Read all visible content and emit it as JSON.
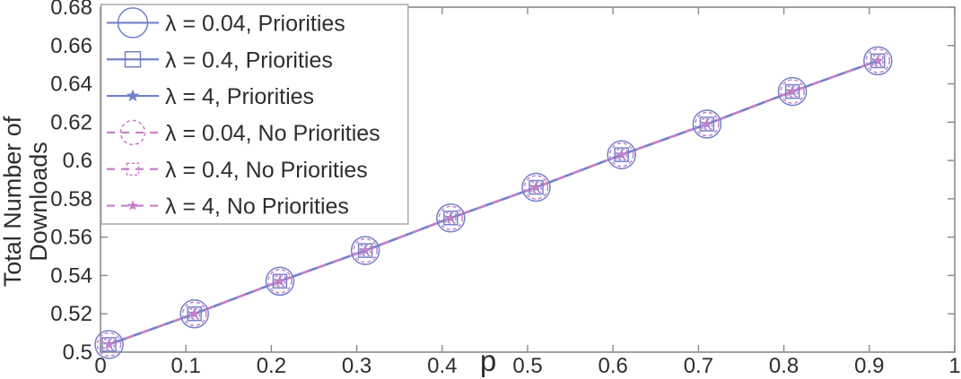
{
  "figure": {
    "colors": {
      "priorities": "#7280c9",
      "no_priorities": "#c77fc7",
      "axis": "#8a8a8a",
      "text": "#2e2e2e",
      "legend_border": "#a8a8a8",
      "background": "#ffffff"
    }
  },
  "chart_data": {
    "type": "line",
    "title": "",
    "xlabel": "p",
    "ylabel": "Total Number of Downloads",
    "ylabel_lines": [
      "Total Number of",
      "Downloads"
    ],
    "xlim": [
      0,
      1
    ],
    "ylim": [
      0.5,
      0.68
    ],
    "grid": false,
    "legend_position": "top-left",
    "x_ticks": [
      0,
      0.1,
      0.2,
      0.3,
      0.4,
      0.5,
      0.6,
      0.7,
      0.8,
      0.9,
      1
    ],
    "x_tick_labels": [
      "0",
      "0.1",
      "0.2",
      "0.3",
      "0.4",
      "0.5",
      "0.6",
      "0.7",
      "0.8",
      "0.9",
      "1"
    ],
    "y_ticks": [
      0.5,
      0.52,
      0.54,
      0.56,
      0.58,
      0.6,
      0.62,
      0.64,
      0.66,
      0.68
    ],
    "y_tick_labels": [
      "0.5",
      "0.52",
      "0.54",
      "0.56",
      "0.58",
      "0.6",
      "0.62",
      "0.64",
      "0.66",
      "0.68"
    ],
    "x": [
      0.01,
      0.11,
      0.21,
      0.31,
      0.41,
      0.51,
      0.61,
      0.71,
      0.81,
      0.91
    ],
    "series": [
      {
        "name": "λ = 0.04, Priorities",
        "group": "priorities",
        "color": "#7280c9",
        "line": "solid",
        "marker": "circle",
        "values": [
          0.504,
          0.52,
          0.537,
          0.553,
          0.57,
          0.586,
          0.603,
          0.619,
          0.636,
          0.652
        ]
      },
      {
        "name": "λ = 0.4, Priorities",
        "group": "priorities",
        "color": "#7280c9",
        "line": "solid",
        "marker": "square",
        "values": [
          0.504,
          0.52,
          0.537,
          0.553,
          0.57,
          0.586,
          0.603,
          0.619,
          0.636,
          0.652
        ]
      },
      {
        "name": "λ = 4, Priorities",
        "group": "priorities",
        "color": "#7280c9",
        "line": "solid",
        "marker": "star",
        "values": [
          0.504,
          0.52,
          0.537,
          0.553,
          0.57,
          0.586,
          0.603,
          0.619,
          0.636,
          0.652
        ]
      },
      {
        "name": "λ = 0.04, No Priorities",
        "group": "no_priorities",
        "color": "#c77fc7",
        "line": "dashed",
        "marker": "circle",
        "values": [
          0.504,
          0.52,
          0.537,
          0.553,
          0.57,
          0.586,
          0.603,
          0.619,
          0.636,
          0.652
        ]
      },
      {
        "name": "λ = 0.4, No Priorities",
        "group": "no_priorities",
        "color": "#c77fc7",
        "line": "dashed",
        "marker": "square",
        "values": [
          0.504,
          0.52,
          0.537,
          0.553,
          0.57,
          0.586,
          0.603,
          0.619,
          0.636,
          0.652
        ]
      },
      {
        "name": "λ = 4, No Priorities",
        "group": "no_priorities",
        "color": "#c77fc7",
        "line": "dashed",
        "marker": "star",
        "values": [
          0.504,
          0.52,
          0.537,
          0.553,
          0.57,
          0.586,
          0.603,
          0.619,
          0.636,
          0.652
        ]
      }
    ]
  }
}
